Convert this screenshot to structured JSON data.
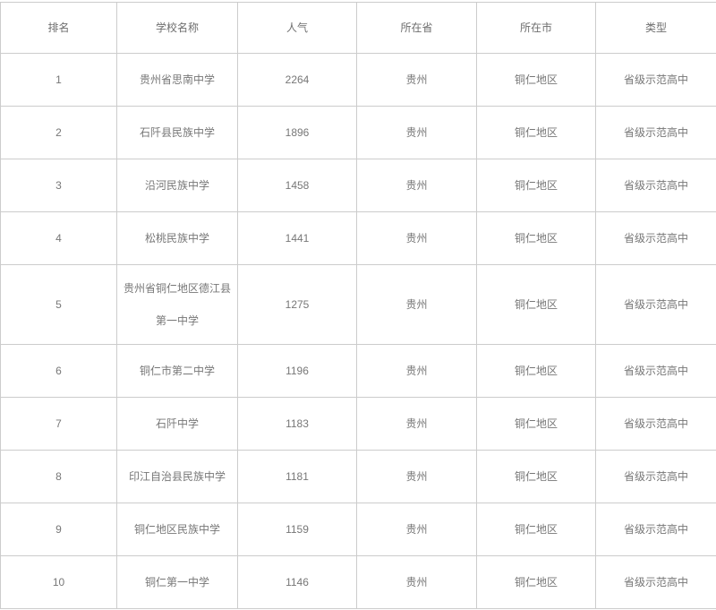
{
  "chart_data": {
    "type": "table",
    "title": "",
    "columns": [
      "排名",
      "学校名称",
      "人气",
      "所在省",
      "所在市",
      "类型"
    ],
    "rows": [
      [
        "1",
        "贵州省思南中学",
        "2264",
        "贵州",
        "铜仁地区",
        "省级示范高中"
      ],
      [
        "2",
        "石阡县民族中学",
        "1896",
        "贵州",
        "铜仁地区",
        "省级示范高中"
      ],
      [
        "3",
        "沿河民族中学",
        "1458",
        "贵州",
        "铜仁地区",
        "省级示范高中"
      ],
      [
        "4",
        "松桃民族中学",
        "1441",
        "贵州",
        "铜仁地区",
        "省级示范高中"
      ],
      [
        "5",
        "贵州省铜仁地区德江县第一中学",
        "1275",
        "贵州",
        "铜仁地区",
        "省级示范高中"
      ],
      [
        "6",
        "铜仁市第二中学",
        "1196",
        "贵州",
        "铜仁地区",
        "省级示范高中"
      ],
      [
        "7",
        "石阡中学",
        "1183",
        "贵州",
        "铜仁地区",
        "省级示范高中"
      ],
      [
        "8",
        "印江自治县民族中学",
        "1181",
        "贵州",
        "铜仁地区",
        "省级示范高中"
      ],
      [
        "9",
        "铜仁地区民族中学",
        "1159",
        "贵州",
        "铜仁地区",
        "省级示范高中"
      ],
      [
        "10",
        "铜仁第一中学",
        "1146",
        "贵州",
        "铜仁地区",
        "省级示范高中"
      ]
    ],
    "colors": {
      "border": "#cccccc",
      "text": "#777777",
      "header_text": "#6e6e6e",
      "background": "#ffffff"
    }
  }
}
